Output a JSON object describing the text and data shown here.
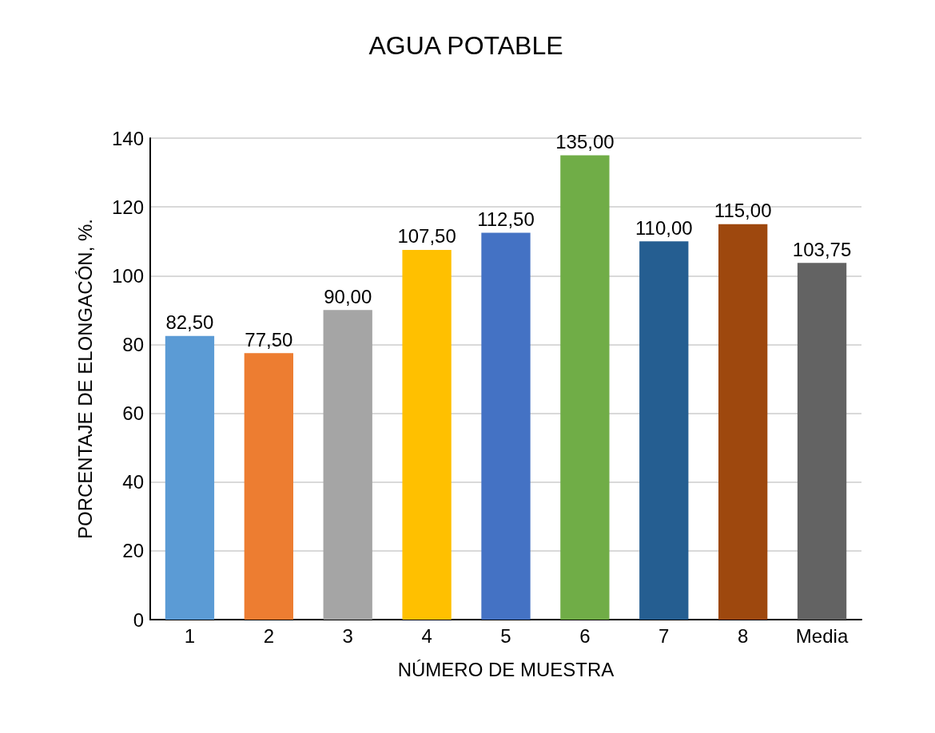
{
  "chart_data": {
    "type": "bar",
    "title": "AGUA POTABLE",
    "xlabel": "NÚMERO DE MUESTRA",
    "ylabel": "PORCENTAJE DE ELONGACÓN, %.",
    "categories": [
      "1",
      "2",
      "3",
      "4",
      "5",
      "6",
      "7",
      "8",
      "Media"
    ],
    "values": [
      82.5,
      77.5,
      90,
      107.5,
      112.5,
      135,
      110,
      115,
      103.75
    ],
    "value_labels": [
      "82,50",
      "77,50",
      "90,00",
      "107,50",
      "112,50",
      "135,00",
      "110,00",
      "115,00",
      "103,75"
    ],
    "colors": [
      "#5b9bd5",
      "#ed7d31",
      "#a5a5a5",
      "#ffc000",
      "#4472c4",
      "#70ad47",
      "#255e91",
      "#9e480e",
      "#636363"
    ],
    "ylim": [
      0,
      140
    ],
    "yticks": [
      0,
      20,
      40,
      60,
      80,
      100,
      120,
      140
    ],
    "grid": "y"
  }
}
